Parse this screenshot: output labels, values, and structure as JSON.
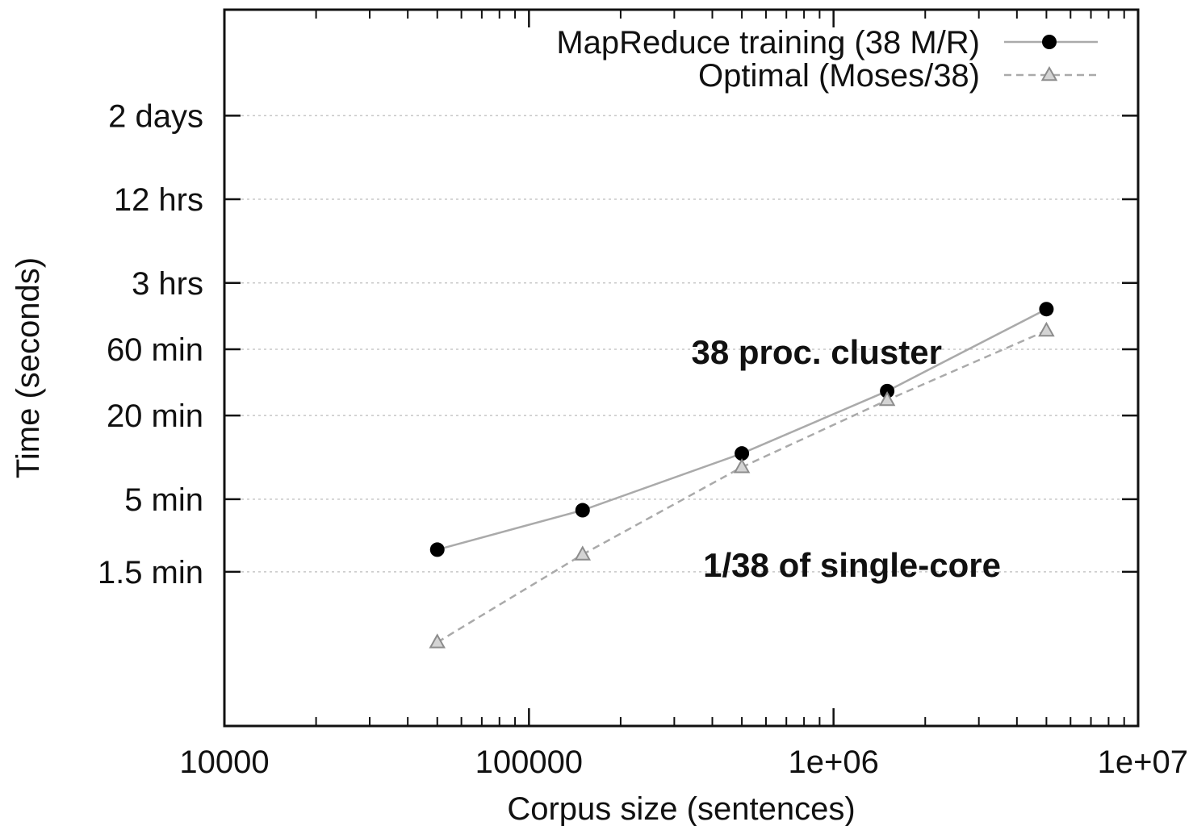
{
  "chart_data": {
    "type": "line",
    "title": "",
    "xlabel": "Corpus size (sentences)",
    "ylabel": "Time (seconds)",
    "xscale": "log",
    "yscale": "log",
    "xlim": [
      10000,
      10000000
    ],
    "ylim": [
      7,
      1000000
    ],
    "grid": {
      "x": false,
      "y": true
    },
    "legend_position": "top-right",
    "x_ticks": [
      {
        "value": 10000,
        "label": "10000"
      },
      {
        "value": 100000,
        "label": "100000"
      },
      {
        "value": 1000000,
        "label": "1e+06"
      },
      {
        "value": 10000000,
        "label": "1e+07"
      }
    ],
    "y_ticks": [
      {
        "value": 90,
        "label": "1.5 min"
      },
      {
        "value": 300,
        "label": "5 min"
      },
      {
        "value": 1200,
        "label": "20 min"
      },
      {
        "value": 3600,
        "label": "60 min"
      },
      {
        "value": 10800,
        "label": "3 hrs"
      },
      {
        "value": 43200,
        "label": "12 hrs"
      },
      {
        "value": 172800,
        "label": "2 days"
      }
    ],
    "series": [
      {
        "name": "MapReduce training (38 M/R)",
        "marker": "circle",
        "line_style": "solid",
        "color": "#aaaaaa",
        "marker_color": "#000000",
        "x": [
          50000,
          150000,
          500000,
          1500000,
          5000000
        ],
        "y": [
          130,
          250,
          640,
          1800,
          7000
        ]
      },
      {
        "name": "Optimal (Moses/38)",
        "marker": "triangle",
        "line_style": "dashed",
        "color": "#aaaaaa",
        "marker_color": "#aaaaaa",
        "x": [
          50000,
          150000,
          500000,
          1500000,
          5000000
        ],
        "y": [
          28,
          120,
          510,
          1550,
          4900
        ]
      }
    ],
    "annotations": [
      {
        "text": "38 proc. cluster",
        "x": 880000,
        "y": 3400
      },
      {
        "text": "1/38 of single-core",
        "x": 1150000,
        "y": 100
      }
    ]
  }
}
